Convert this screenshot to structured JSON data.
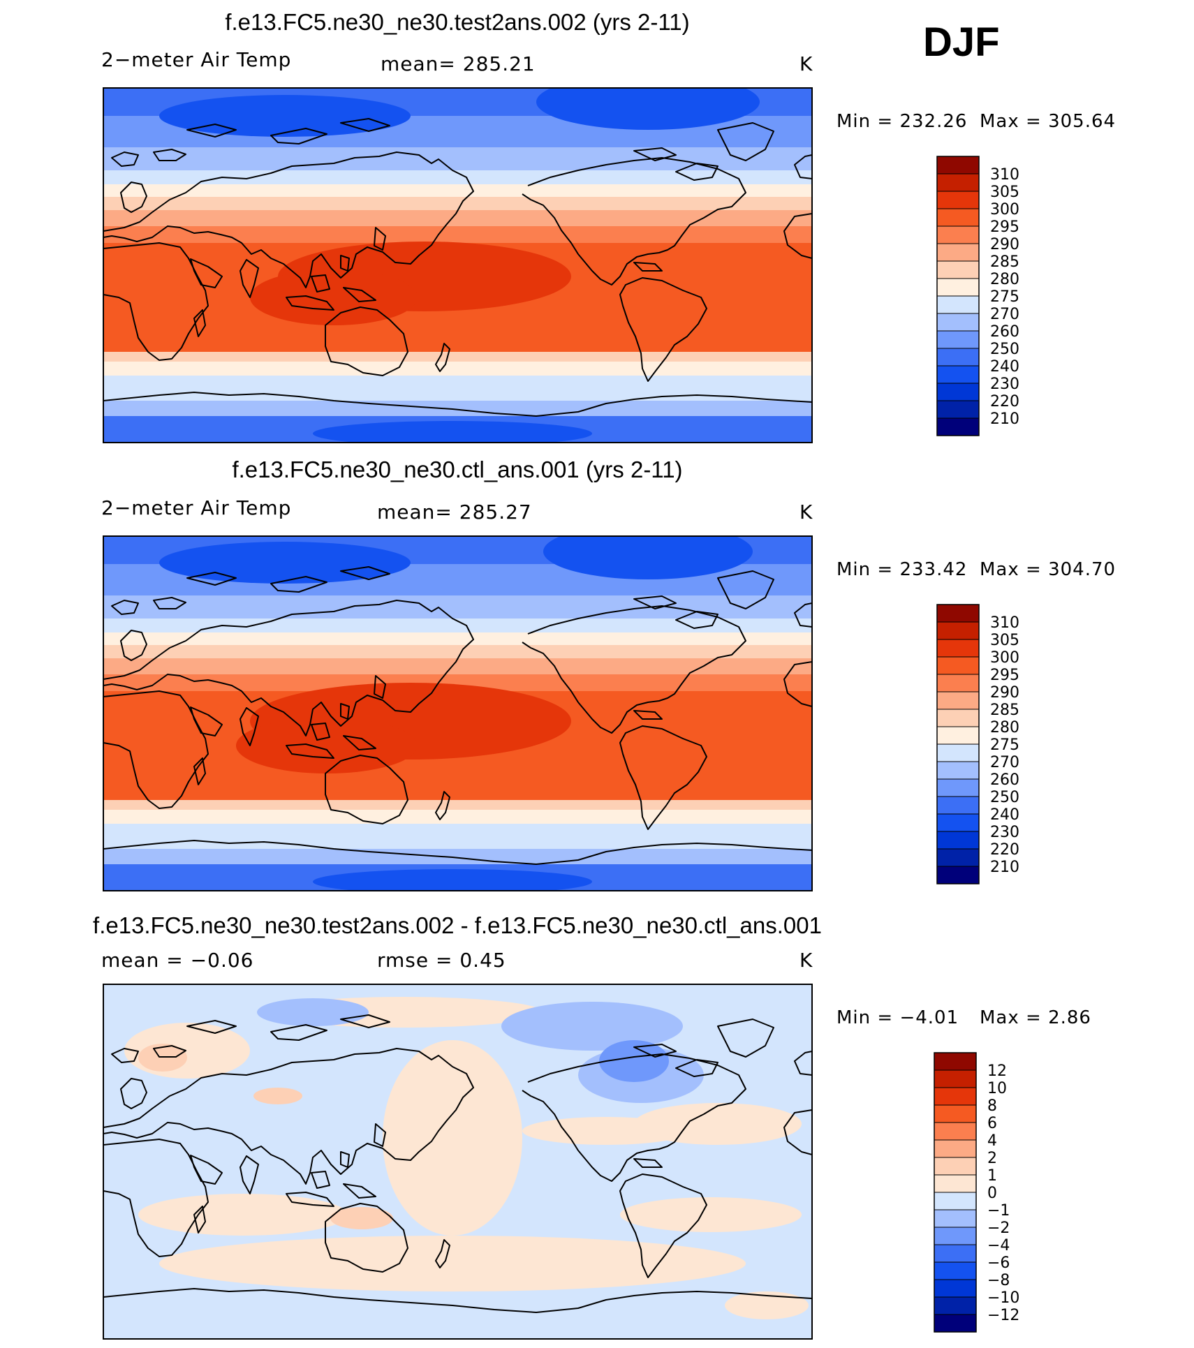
{
  "season": "DJF",
  "colors": {
    "abs": [
      "#00007a",
      "#0022a8",
      "#0037d6",
      "#1452f0",
      "#3c6ff5",
      "#6f98fb",
      "#a3bffd",
      "#d3e5fd",
      "#fff0e0",
      "#fdd0b5",
      "#fcaa85",
      "#fb7f4f",
      "#f55a22",
      "#e5360a",
      "#c52000",
      "#8f0800"
    ],
    "diff": [
      "#00007a",
      "#0022a8",
      "#0037d6",
      "#1452f0",
      "#3c6ff5",
      "#6f98fb",
      "#a3bffd",
      "#d3e5fd",
      "#fde6d3",
      "#fdd0b5",
      "#fcaa85",
      "#fb7f4f",
      "#f55a22",
      "#e5360a",
      "#c52000",
      "#8f0800"
    ]
  },
  "chart_data": [
    {
      "type": "heatmap",
      "title": "f.e13.FC5.ne30_ne30.test2ans.002 (yrs 2-11)",
      "variable": "2−meter Air Temp",
      "stat_label": "mean=  285.21",
      "mean": 285.21,
      "units": "K",
      "min_label": "Min  =  232.26",
      "max_label": "Max  =  305.64",
      "min": 232.26,
      "max": 305.64,
      "colorbar_ticks": [
        "310",
        "305",
        "300",
        "295",
        "290",
        "285",
        "280",
        "275",
        "270",
        "260",
        "250",
        "240",
        "230",
        "220",
        "210"
      ],
      "colorbar_levels": [
        210,
        220,
        230,
        240,
        250,
        260,
        270,
        275,
        280,
        285,
        290,
        295,
        300,
        305,
        310
      ]
    },
    {
      "type": "heatmap",
      "title": "f.e13.FC5.ne30_ne30.ctl_ans.001 (yrs 2-11)",
      "variable": "2−meter Air Temp",
      "stat_label": "mean=  285.27",
      "mean": 285.27,
      "units": "K",
      "min_label": "Min  =  233.42",
      "max_label": "Max  =  304.70",
      "min": 233.42,
      "max": 304.7,
      "colorbar_ticks": [
        "310",
        "305",
        "300",
        "295",
        "290",
        "285",
        "280",
        "275",
        "270",
        "260",
        "250",
        "240",
        "230",
        "220",
        "210"
      ],
      "colorbar_levels": [
        210,
        220,
        230,
        240,
        250,
        260,
        270,
        275,
        280,
        285,
        290,
        295,
        300,
        305,
        310
      ]
    },
    {
      "type": "heatmap",
      "title": "f.e13.FC5.ne30_ne30.test2ans.002 - f.e13.FC5.ne30_ne30.ctl_ans.001",
      "stat_label": "mean  =    −0.06",
      "rmse_label": "rmse  =     0.45",
      "mean": -0.06,
      "rmse": 0.45,
      "units": "K",
      "min_label": "Min  =    −4.01",
      "max_label": "Max  =      2.86",
      "min": -4.01,
      "max": 2.86,
      "colorbar_ticks": [
        "12",
        "10",
        "8",
        "6",
        "4",
        "2",
        "1",
        "0",
        "−1",
        "−2",
        "−4",
        "−6",
        "−8",
        "−10",
        "−12"
      ],
      "colorbar_levels": [
        -12,
        -10,
        -8,
        -6,
        -4,
        -2,
        -1,
        0,
        1,
        2,
        4,
        6,
        8,
        10,
        12
      ]
    }
  ]
}
